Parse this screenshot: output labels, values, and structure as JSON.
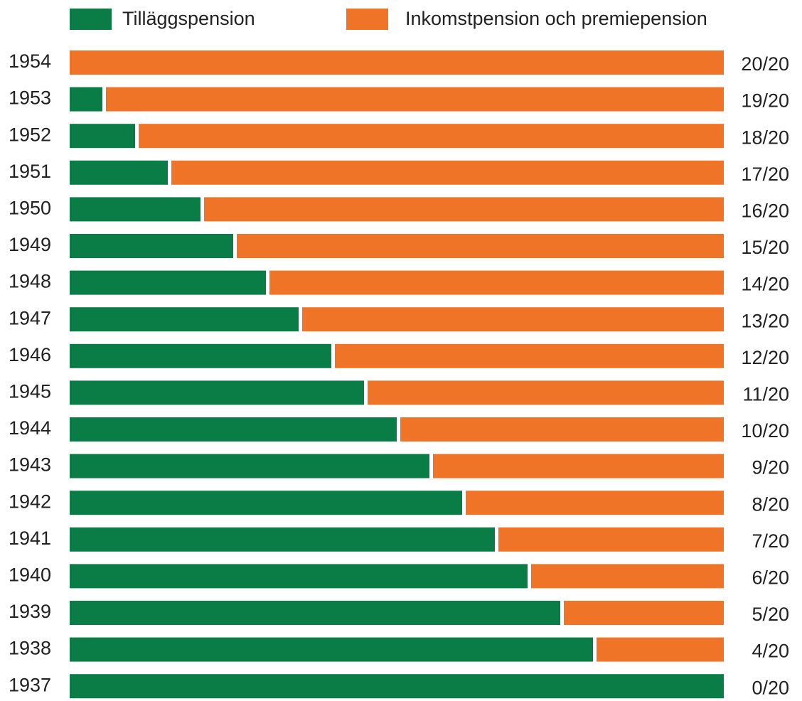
{
  "chart_data": {
    "type": "stacked-bar-horizontal",
    "categories": [
      "1954",
      "1953",
      "1952",
      "1951",
      "1950",
      "1949",
      "1948",
      "1947",
      "1946",
      "1945",
      "1944",
      "1943",
      "1942",
      "1941",
      "1940",
      "1939",
      "1938",
      "1937"
    ],
    "series": [
      {
        "name": "Tilläggspension",
        "color": "#0a7c45",
        "values": [
          0,
          1,
          2,
          3,
          4,
          5,
          6,
          7,
          8,
          9,
          10,
          11,
          12,
          13,
          14,
          15,
          16,
          20
        ]
      },
      {
        "name": "Inkomstpension och premiepension",
        "color": "#f07427",
        "values": [
          20,
          19,
          18,
          17,
          16,
          15,
          14,
          13,
          12,
          11,
          10,
          9,
          8,
          7,
          6,
          5,
          4,
          0
        ],
        "value_labels": [
          "20/20",
          "19/20",
          "18/20",
          "17/20",
          "16/20",
          "15/20",
          "14/20",
          "13/20",
          "12/20",
          "11/20",
          "10/20",
          "9/20",
          "8/20",
          "7/20",
          "6/20",
          "5/20",
          "4/20",
          "0/20"
        ]
      }
    ],
    "legend": "top"
  }
}
